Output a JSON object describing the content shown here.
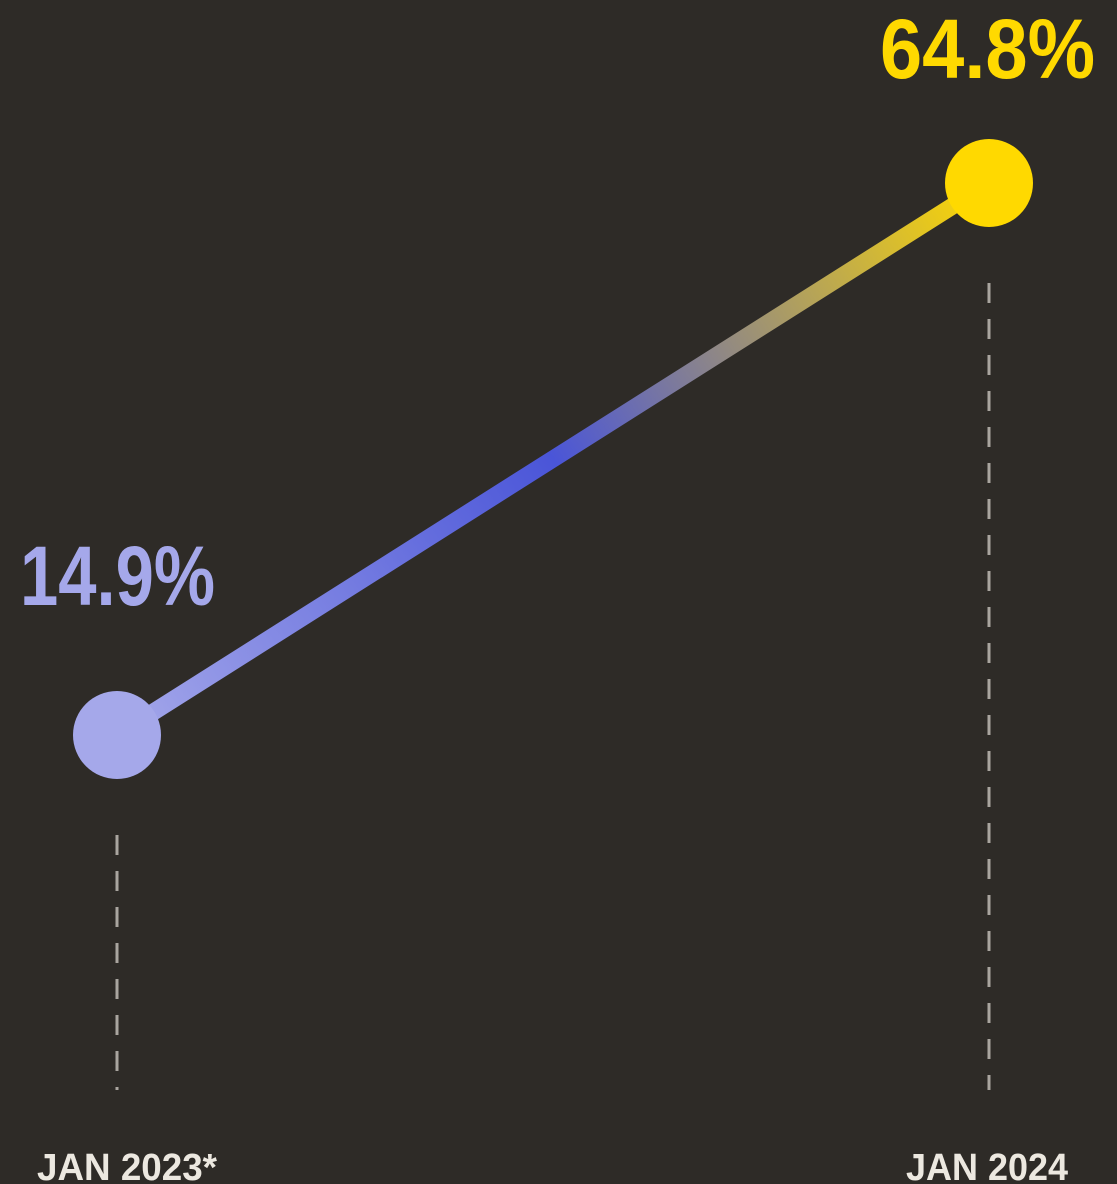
{
  "chart_data": {
    "type": "line",
    "categories": [
      "JAN 2023*",
      "JAN 2024"
    ],
    "values": [
      14.9,
      64.8
    ],
    "value_labels": [
      "14.9%",
      "64.8%"
    ],
    "colors": [
      "#a5a8ea",
      "#ffd900"
    ]
  }
}
